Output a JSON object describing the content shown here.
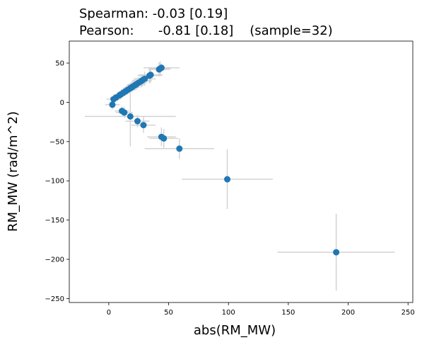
{
  "chart_data": {
    "type": "scatter",
    "title_line1": "Spearman: -0.03 [0.19]",
    "title_line2": "Pearson:      -0.81 [0.18]    (sample=32)",
    "xlabel": "abs(RM_MW)",
    "ylabel": "RM_MW (rad/m^2)",
    "xlim": [
      -33,
      254
    ],
    "ylim": [
      -255,
      78
    ],
    "xticks": [
      0,
      50,
      100,
      150,
      200,
      250
    ],
    "yticks": [
      50,
      0,
      -50,
      -100,
      -150,
      -200,
      -250
    ],
    "grid": false,
    "colors": {
      "point": "#1f77b4",
      "errorbar": "#d3d3d3",
      "axes": "#000000"
    },
    "points": [
      {
        "x": 190,
        "y": -191,
        "xerr": 49,
        "yerr": 49
      },
      {
        "x": 99,
        "y": -98,
        "xerr": 38,
        "yerr": 38
      },
      {
        "x": 59,
        "y": -59,
        "xerr": 29,
        "yerr": 13
      },
      {
        "x": 46,
        "y": -46,
        "xerr": 12,
        "yerr": 12
      },
      {
        "x": 44,
        "y": -44,
        "xerr": 12,
        "yerr": 12
      },
      {
        "x": 29,
        "y": -29,
        "xerr": 10,
        "yerr": 10
      },
      {
        "x": 24,
        "y": -24,
        "xerr": 10,
        "yerr": 8
      },
      {
        "x": 18,
        "y": -18,
        "xerr": 38,
        "yerr": 38
      },
      {
        "x": 13,
        "y": -13,
        "xerr": 7,
        "yerr": 7
      },
      {
        "x": 11,
        "y": -11,
        "xerr": 6,
        "yerr": 6
      },
      {
        "x": 3,
        "y": -3,
        "xerr": 6,
        "yerr": 6
      },
      {
        "x": 4,
        "y": 4,
        "xerr": 6,
        "yerr": 6
      },
      {
        "x": 6,
        "y": 6,
        "xerr": 5,
        "yerr": 5
      },
      {
        "x": 9,
        "y": 9,
        "xerr": 5,
        "yerr": 5
      },
      {
        "x": 10,
        "y": 10,
        "xerr": 5,
        "yerr": 5
      },
      {
        "x": 12,
        "y": 12,
        "xerr": 5,
        "yerr": 5
      },
      {
        "x": 14,
        "y": 14,
        "xerr": 5,
        "yerr": 5
      },
      {
        "x": 16,
        "y": 16,
        "xerr": 6,
        "yerr": 6
      },
      {
        "x": 18,
        "y": 18,
        "xerr": 6,
        "yerr": 6
      },
      {
        "x": 19,
        "y": 19,
        "xerr": 6,
        "yerr": 6
      },
      {
        "x": 20,
        "y": 20,
        "xerr": 6,
        "yerr": 6
      },
      {
        "x": 23,
        "y": 23,
        "xerr": 7,
        "yerr": 7
      },
      {
        "x": 25,
        "y": 25,
        "xerr": 7,
        "yerr": 7
      },
      {
        "x": 27,
        "y": 27,
        "xerr": 8,
        "yerr": 8
      },
      {
        "x": 28,
        "y": 28,
        "xerr": 8,
        "yerr": 8
      },
      {
        "x": 30,
        "y": 30,
        "xerr": 9,
        "yerr": 9
      },
      {
        "x": 34,
        "y": 34,
        "xerr": 10,
        "yerr": 10
      },
      {
        "x": 35,
        "y": 35,
        "xerr": 10,
        "yerr": 10
      },
      {
        "x": 42,
        "y": 42,
        "xerr": 9,
        "yerr": 9
      },
      {
        "x": 43,
        "y": 43,
        "xerr": 9,
        "yerr": 9
      },
      {
        "x": 44,
        "y": 44,
        "xerr": 15,
        "yerr": 5
      },
      {
        "x": 22,
        "y": 22,
        "xerr": 7,
        "yerr": 7
      }
    ]
  }
}
